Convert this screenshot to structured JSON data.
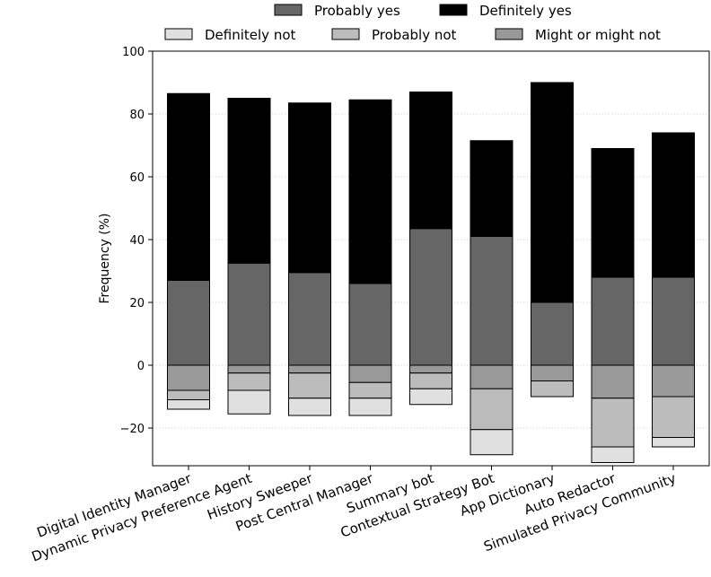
{
  "chart_data": {
    "type": "bar",
    "stacked": "diverging",
    "title": "",
    "xlabel": "",
    "ylabel": "Frequency (%)",
    "ylim": [
      -32,
      100
    ],
    "yticks": [
      -20,
      0,
      20,
      40,
      60,
      80,
      100
    ],
    "ytick_labels": [
      "−20",
      "0",
      "20",
      "40",
      "60",
      "80",
      "100"
    ],
    "grid": "horizontal-dotted",
    "legend_position": "top",
    "categories": [
      "Digital Identity Manager",
      "Dynamic Privacy Preference Agent",
      "History Sweeper",
      "Post Central Manager",
      "Summary bot",
      "Contextual Strategy Bot",
      "App Dictionary",
      "Auto Redactor",
      "Simulated Privacy Community"
    ],
    "series": [
      {
        "name": "Definitely not",
        "color": "#e0e0e0",
        "direction": "down",
        "values": [
          3.0,
          7.5,
          5.5,
          5.5,
          5.0,
          8.0,
          0.0,
          5.0,
          3.0
        ]
      },
      {
        "name": "Probably not",
        "color": "#bcbcbc",
        "direction": "down",
        "values": [
          3.0,
          5.5,
          8.0,
          5.0,
          5.0,
          13.0,
          5.0,
          15.5,
          13.0
        ]
      },
      {
        "name": "Might or might not",
        "color": "#999999",
        "direction": "down",
        "values": [
          8.0,
          2.5,
          2.5,
          5.5,
          2.5,
          7.5,
          5.0,
          10.5,
          10.0
        ]
      },
      {
        "name": "Probably yes",
        "color": "#666666",
        "direction": "up",
        "values": [
          27.0,
          32.5,
          29.5,
          26.0,
          43.5,
          41.0,
          20.0,
          28.0,
          28.0
        ]
      },
      {
        "name": "Definitely yes",
        "color": "#000000",
        "direction": "up",
        "values": [
          59.5,
          52.5,
          54.0,
          58.5,
          43.5,
          30.5,
          70.0,
          41.0,
          46.0
        ]
      }
    ]
  },
  "legend": {
    "row1": [
      "Probably yes",
      "Definitely yes"
    ],
    "row2": [
      "Definitely not",
      "Probably not",
      "Might or might not"
    ]
  }
}
